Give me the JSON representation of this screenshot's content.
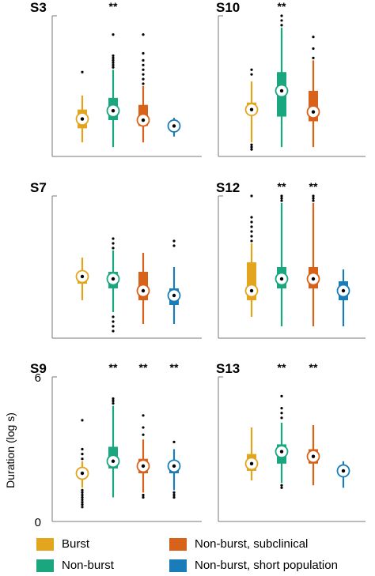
{
  "colors": {
    "Burst": "#E3A51E",
    "Non-burst": "#1AA67F",
    "Non-burst, subclinical": "#D9621A",
    "Non-burst, short population": "#1A7DB8"
  },
  "legend": [
    {
      "label": "Burst",
      "color": "#E3A51E"
    },
    {
      "label": "Non-burst",
      "color": "#1AA67F"
    },
    {
      "label": "Non-burst, subclinical",
      "color": "#D9621A"
    },
    {
      "label": "Non-burst, short population",
      "color": "#1A7DB8"
    }
  ],
  "y_axis": {
    "label": "Duration (log s)",
    "ticks": [
      "6",
      "0"
    ]
  },
  "chart_data": [
    {
      "type": "box",
      "title": "S3",
      "ylim": [
        0,
        6
      ],
      "series": [
        {
          "name": "Burst",
          "median": 1.6,
          "q1": 1.2,
          "q3": 2.0,
          "whisker_low": 0.6,
          "whisker_high": 2.6,
          "outliers": [
            3.6
          ],
          "significance": ""
        },
        {
          "name": "Non-burst",
          "median": 1.95,
          "q1": 1.55,
          "q3": 2.5,
          "whisker_low": 0.4,
          "whisker_high": 3.7,
          "outliers": [
            3.8,
            3.9,
            4.0,
            4.1,
            4.2,
            4.3,
            5.2
          ],
          "significance": "**"
        },
        {
          "name": "Non-burst, subclinical",
          "median": 1.55,
          "q1": 1.3,
          "q3": 2.2,
          "whisker_low": 0.6,
          "whisker_high": 3.0,
          "outliers": [
            3.1,
            3.3,
            3.5,
            3.7,
            3.9,
            4.1,
            4.4,
            5.2
          ],
          "significance": ""
        },
        {
          "name": "Non-burst, short population",
          "median": 1.3,
          "q1": 1.3,
          "q3": 1.3,
          "whisker_low": 0.85,
          "whisker_high": 1.65,
          "outliers": [],
          "significance": ""
        }
      ]
    },
    {
      "type": "box",
      "title": "S10",
      "ylim": [
        0,
        6
      ],
      "series": [
        {
          "name": "Burst",
          "median": 2.0,
          "q1": 1.8,
          "q3": 2.3,
          "whisker_low": 0.6,
          "whisker_high": 3.2,
          "outliers": [
            0.3,
            0.4,
            0.5,
            3.5,
            3.7
          ],
          "significance": ""
        },
        {
          "name": "Non-burst",
          "median": 2.8,
          "q1": 1.7,
          "q3": 3.6,
          "whisker_low": 0.4,
          "whisker_high": 5.5,
          "outliers": [
            5.6,
            5.8,
            6.0
          ],
          "significance": "**"
        },
        {
          "name": "Non-burst, subclinical",
          "median": 1.9,
          "q1": 1.5,
          "q3": 2.8,
          "whisker_low": 0.4,
          "whisker_high": 4.1,
          "outliers": [
            4.2,
            4.6,
            5.1
          ],
          "significance": ""
        }
      ]
    },
    {
      "type": "box",
      "title": "S7",
      "ylim": [
        0,
        6
      ],
      "series": [
        {
          "name": "Burst",
          "median": 2.6,
          "q1": 2.3,
          "q3": 2.6,
          "whisker_low": 1.6,
          "whisker_high": 3.4,
          "outliers": [],
          "significance": ""
        },
        {
          "name": "Non-burst",
          "median": 2.5,
          "q1": 2.1,
          "q3": 2.8,
          "whisker_low": 1.1,
          "whisker_high": 3.7,
          "outliers": [
            0.3,
            0.5,
            0.7,
            0.9,
            3.8,
            4.0,
            4.2
          ],
          "significance": ""
        },
        {
          "name": "Non-burst, subclinical",
          "median": 2.0,
          "q1": 1.6,
          "q3": 2.8,
          "whisker_low": 0.6,
          "whisker_high": 3.6,
          "outliers": [],
          "significance": ""
        },
        {
          "name": "Non-burst, short population",
          "median": 1.8,
          "q1": 1.4,
          "q3": 2.1,
          "whisker_low": 0.6,
          "whisker_high": 3.0,
          "outliers": [
            3.9,
            4.1
          ],
          "significance": ""
        }
      ]
    },
    {
      "type": "box",
      "title": "S12",
      "ylim": [
        0,
        6
      ],
      "series": [
        {
          "name": "Burst",
          "median": 2.0,
          "q1": 1.6,
          "q3": 3.2,
          "whisker_low": 0.9,
          "whisker_high": 4.0,
          "outliers": [
            4.1,
            4.3,
            4.5,
            4.7,
            4.9,
            5.1,
            6.0
          ],
          "significance": ""
        },
        {
          "name": "Non-burst",
          "median": 2.5,
          "q1": 2.1,
          "q3": 3.0,
          "whisker_low": 0.5,
          "whisker_high": 5.7,
          "outliers": [
            5.8,
            5.9,
            6.0
          ],
          "significance": "**"
        },
        {
          "name": "Non-burst, subclinical",
          "median": 2.5,
          "q1": 2.1,
          "q3": 3.0,
          "whisker_low": 0.5,
          "whisker_high": 5.7,
          "outliers": [
            5.8,
            5.9,
            6.0
          ],
          "significance": "**"
        },
        {
          "name": "Non-burst, short population",
          "median": 2.0,
          "q1": 1.6,
          "q3": 2.4,
          "whisker_low": 0.5,
          "whisker_high": 2.9,
          "outliers": [],
          "significance": ""
        }
      ]
    },
    {
      "type": "box",
      "title": "S9",
      "ylim": [
        0,
        6
      ],
      "series": [
        {
          "name": "Burst",
          "median": 2.0,
          "q1": 2.0,
          "q3": 2.0,
          "whisker_low": 1.4,
          "whisker_high": 2.5,
          "outliers": [
            0.6,
            0.7,
            0.8,
            0.9,
            1.0,
            1.1,
            1.2,
            1.3,
            2.6,
            2.8,
            3.0,
            4.2
          ],
          "significance": ""
        },
        {
          "name": "Non-burst",
          "median": 2.5,
          "q1": 2.2,
          "q3": 3.1,
          "whisker_low": 1.0,
          "whisker_high": 4.8,
          "outliers": [
            4.9,
            5.0,
            5.1
          ],
          "significance": "**"
        },
        {
          "name": "Non-burst, subclinical",
          "median": 2.3,
          "q1": 2.0,
          "q3": 2.6,
          "whisker_low": 1.2,
          "whisker_high": 3.4,
          "outliers": [
            1.0,
            1.1,
            3.6,
            3.9,
            4.4
          ],
          "significance": "**"
        },
        {
          "name": "Non-burst, short population",
          "median": 2.3,
          "q1": 2.0,
          "q3": 2.5,
          "whisker_low": 1.3,
          "whisker_high": 3.0,
          "outliers": [
            1.0,
            1.1,
            1.2,
            3.3
          ],
          "significance": "**"
        }
      ]
    },
    {
      "type": "box",
      "title": "S13",
      "ylim": [
        0,
        6
      ],
      "series": [
        {
          "name": "Burst",
          "median": 2.4,
          "q1": 2.1,
          "q3": 2.8,
          "whisker_low": 1.7,
          "whisker_high": 3.9,
          "outliers": [],
          "significance": ""
        },
        {
          "name": "Non-burst",
          "median": 2.9,
          "q1": 2.4,
          "q3": 3.2,
          "whisker_low": 1.6,
          "whisker_high": 4.1,
          "outliers": [
            1.4,
            1.5,
            4.3,
            4.5,
            4.7,
            5.2
          ],
          "significance": "**"
        },
        {
          "name": "Non-burst, subclinical",
          "median": 2.7,
          "q1": 2.4,
          "q3": 3.0,
          "whisker_low": 1.5,
          "whisker_high": 4.0,
          "outliers": [],
          "significance": "**"
        },
        {
          "name": "Non-burst, short population",
          "median": 2.1,
          "q1": 2.0,
          "q3": 2.3,
          "whisker_low": 1.4,
          "whisker_high": 2.5,
          "outliers": [],
          "significance": ""
        }
      ]
    }
  ]
}
